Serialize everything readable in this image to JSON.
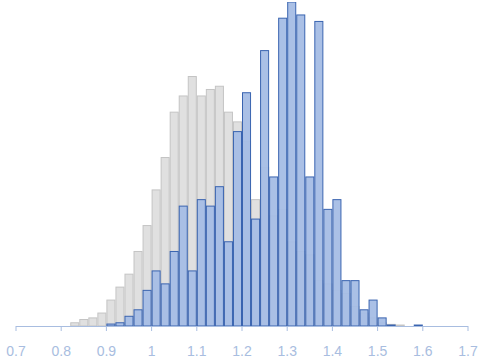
{
  "chart_data": {
    "type": "histogram",
    "bins": [
      0.82,
      0.84,
      0.86,
      0.88,
      0.9,
      0.92,
      0.94,
      0.96,
      0.98,
      1.0,
      1.02,
      1.04,
      1.06,
      1.08,
      1.1,
      1.12,
      1.14,
      1.16,
      1.18,
      1.2,
      1.22,
      1.24,
      1.26,
      1.28,
      1.3,
      1.32,
      1.34,
      1.36,
      1.38,
      1.4,
      1.42,
      1.44,
      1.46,
      1.48,
      1.5,
      1.52,
      1.54,
      1.56,
      1.58,
      1.6,
      1.62
    ],
    "series": [
      {
        "color": "#e0e0e0",
        "values": [
          1,
          2,
          2.5,
          4,
          8,
          12,
          16,
          23,
          31,
          42,
          52,
          66,
          71,
          77,
          71,
          73,
          74,
          66,
          63,
          57,
          39,
          49,
          34,
          36,
          26,
          23,
          22,
          14,
          13,
          11,
          10,
          6,
          4,
          2.5,
          1,
          0.5,
          0.3,
          0,
          0,
          0
        ]
      },
      {
        "color": "#a5bde5",
        "values": [
          0,
          0,
          0,
          0,
          0.6,
          1,
          3,
          5,
          11,
          17,
          13,
          23,
          37,
          17,
          39,
          37,
          43,
          26,
          60,
          72,
          33,
          85,
          46,
          95,
          100,
          96,
          46,
          94,
          36,
          39,
          14,
          14,
          5,
          8,
          2.5,
          0.3,
          0,
          0,
          0.3,
          0
        ]
      }
    ],
    "xlim": [
      0.7,
      1.7
    ],
    "xticks": [
      0.7,
      0.8,
      0.9,
      1,
      1.1,
      1.2,
      1.3,
      1.4,
      1.5,
      1.6,
      1.7
    ],
    "ylim": [
      0,
      100
    ],
    "tick_labels": "x",
    "grid": false
  }
}
